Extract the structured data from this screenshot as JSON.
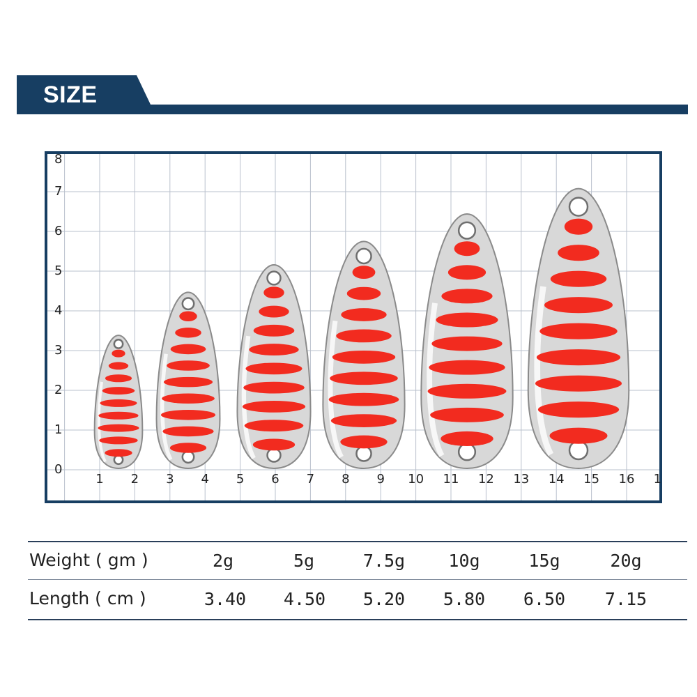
{
  "header": {
    "title": "SIZE",
    "band_color": "#173e62"
  },
  "ruler": {
    "y_ticks": [
      "0",
      "1",
      "2",
      "3",
      "4",
      "5",
      "6",
      "7",
      "8"
    ],
    "x_ticks": [
      "1",
      "2",
      "3",
      "4",
      "5",
      "6",
      "7",
      "8",
      "9",
      "10",
      "11",
      "12",
      "13",
      "14",
      "15",
      "16",
      "1"
    ]
  },
  "lures": [
    {
      "weight": "2g",
      "length": 3.4,
      "stripes": 9
    },
    {
      "weight": "5g",
      "length": 4.5,
      "stripes": 9
    },
    {
      "weight": "7.5g",
      "length": 5.2,
      "stripes": 9
    },
    {
      "weight": "10g",
      "length": 5.8,
      "stripes": 9
    },
    {
      "weight": "15g",
      "length": 6.5,
      "stripes": 9
    },
    {
      "weight": "20g",
      "length": 7.15,
      "stripes": 9
    }
  ],
  "spec_table": {
    "weight_label": "Weight ( gm )",
    "length_label": "Length ( cm )",
    "weights": [
      "2g",
      "5g",
      "7.5g",
      "10g",
      "15g",
      "20g"
    ],
    "lengths": [
      "3.40",
      "4.50",
      "5.20",
      "5.80",
      "6.50",
      "7.15"
    ]
  },
  "colors": {
    "stripe": "#f22b1f",
    "grid": "#b9c0cc",
    "frame": "#173e62",
    "metal": "#d8d8d8"
  }
}
